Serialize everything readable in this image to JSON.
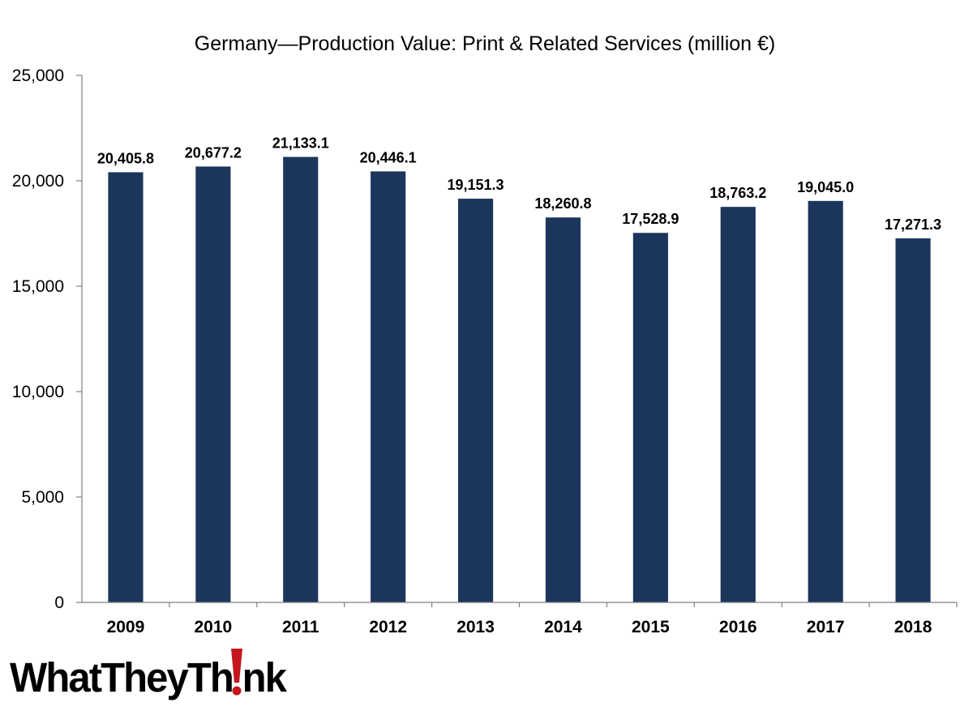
{
  "colors": {
    "bar": "#1b355c",
    "axis": "#7f7f7f",
    "text": "#000000",
    "logo_accent": "#c4161c"
  },
  "chart_data": {
    "type": "bar",
    "title": "Germany—Production Value: Print & Related Services (million €)",
    "categories": [
      "2009",
      "2010",
      "2011",
      "2012",
      "2013",
      "2014",
      "2015",
      "2016",
      "2017",
      "2018"
    ],
    "values": [
      20405.8,
      20677.2,
      21133.1,
      20446.1,
      19151.3,
      18260.8,
      17528.9,
      18763.2,
      19045.0,
      17271.3
    ],
    "data_labels": [
      "20,405.8",
      "20,677.2",
      "21,133.1",
      "20,446.1",
      "19,151.3",
      "18,260.8",
      "17,528.9",
      "18,763.2",
      "19,045.0",
      "17,271.3"
    ],
    "ylim": [
      0,
      25000
    ],
    "y_ticks": [
      0,
      5000,
      10000,
      15000,
      20000,
      25000
    ],
    "y_tick_labels": [
      "0",
      "5,000",
      "10,000",
      "15,000",
      "20,000",
      "25,000"
    ],
    "xlabel": "",
    "ylabel": "",
    "grid": false,
    "legend": "none"
  },
  "logo": {
    "text": "WhatTheyThink",
    "icon": "exclamation-i-logo-mark"
  }
}
